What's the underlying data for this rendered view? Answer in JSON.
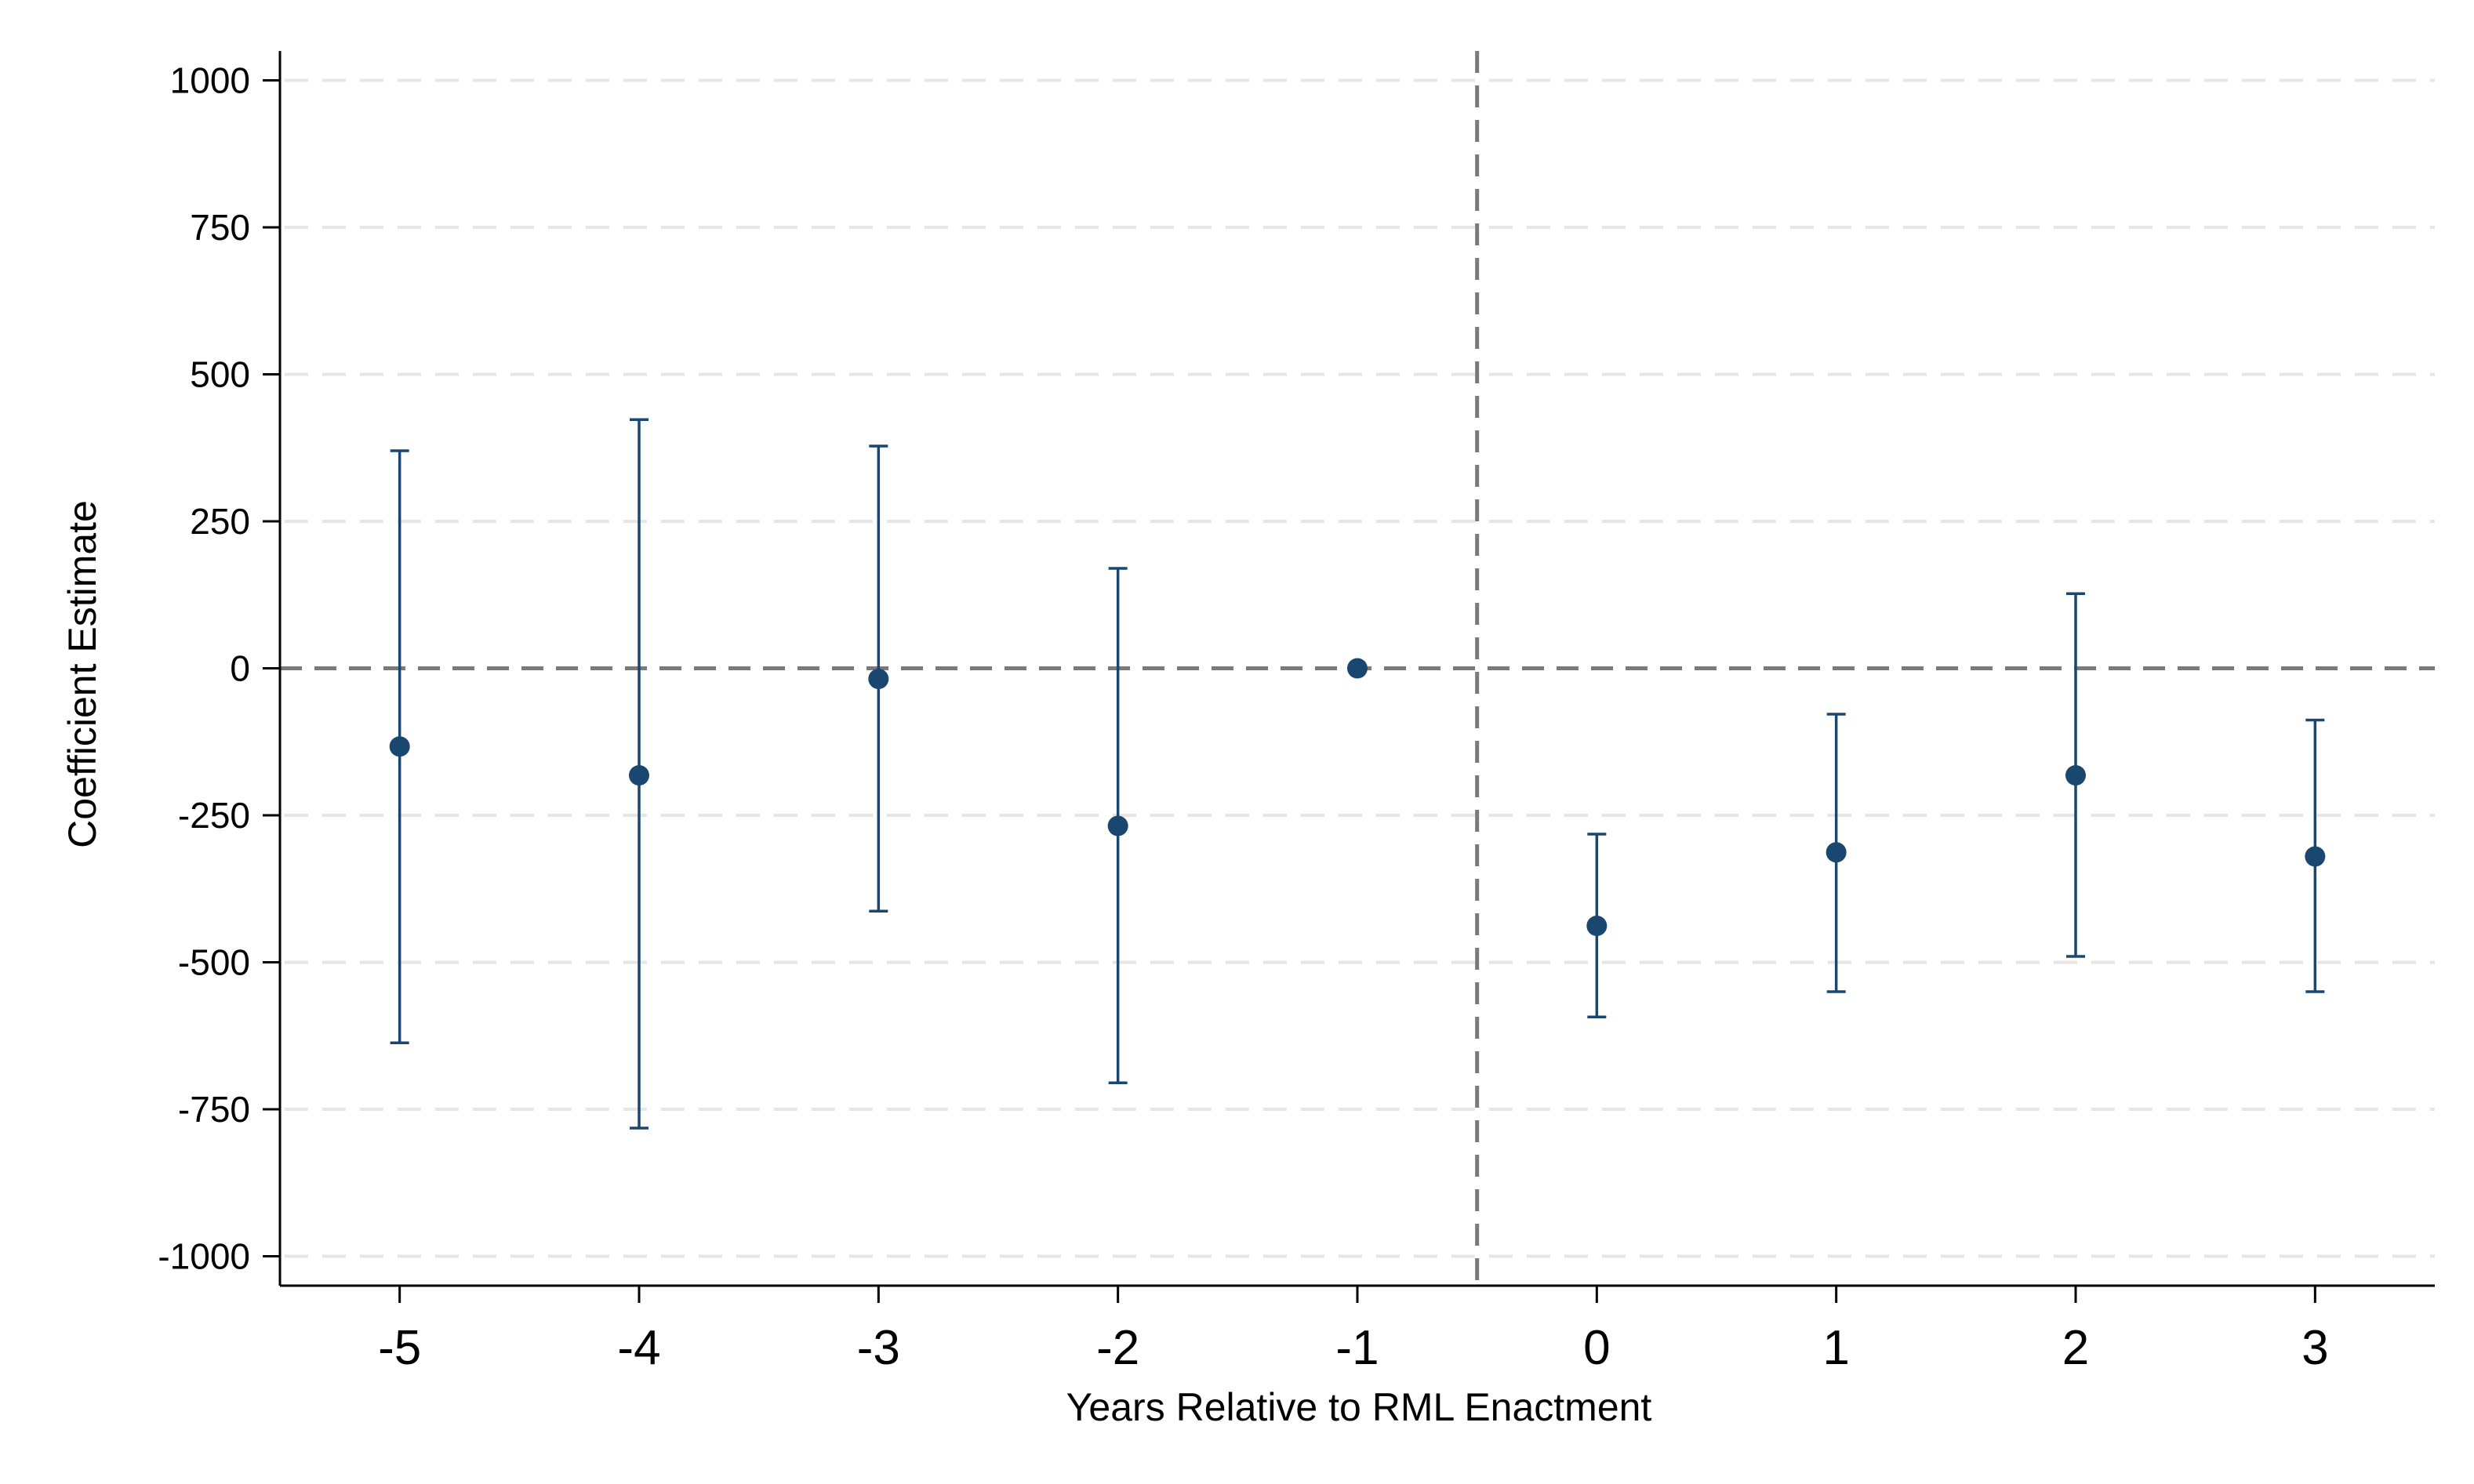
{
  "chart_data": {
    "type": "scatter",
    "title": "",
    "xlabel": "Years Relative to RML Enactment",
    "ylabel": "Coefficient Estimate",
    "x": [
      -5,
      -4,
      -3,
      -2,
      -1,
      0,
      1,
      2,
      3
    ],
    "xticks": [
      "-5",
      "-4",
      "-3",
      "-2",
      "-1",
      "0",
      "1",
      "2",
      "3"
    ],
    "yticks": [
      "1000",
      "750",
      "500",
      "250",
      "0",
      "-250",
      "-500",
      "-750",
      "-1000"
    ],
    "ylim": [
      -1050,
      1050
    ],
    "xlim": [
      -5.5,
      3.5
    ],
    "grid": true,
    "reference_lines": {
      "horizontal_y": 0,
      "vertical_x": -0.5
    },
    "series": [
      {
        "estimates": [
          -133,
          -182,
          -18,
          -268,
          0,
          -438,
          -313,
          -182,
          -320
        ],
        "ci_lower": [
          -637,
          -782,
          -413,
          -705,
          null,
          -593,
          -550,
          -490,
          -550
        ],
        "ci_upper": [
          370,
          423,
          378,
          170,
          null,
          -282,
          -78,
          127,
          -88
        ]
      }
    ],
    "colors": {
      "series": "#1a476f",
      "reference": "#7a7a7a",
      "grid": "#e6e6e6"
    }
  }
}
